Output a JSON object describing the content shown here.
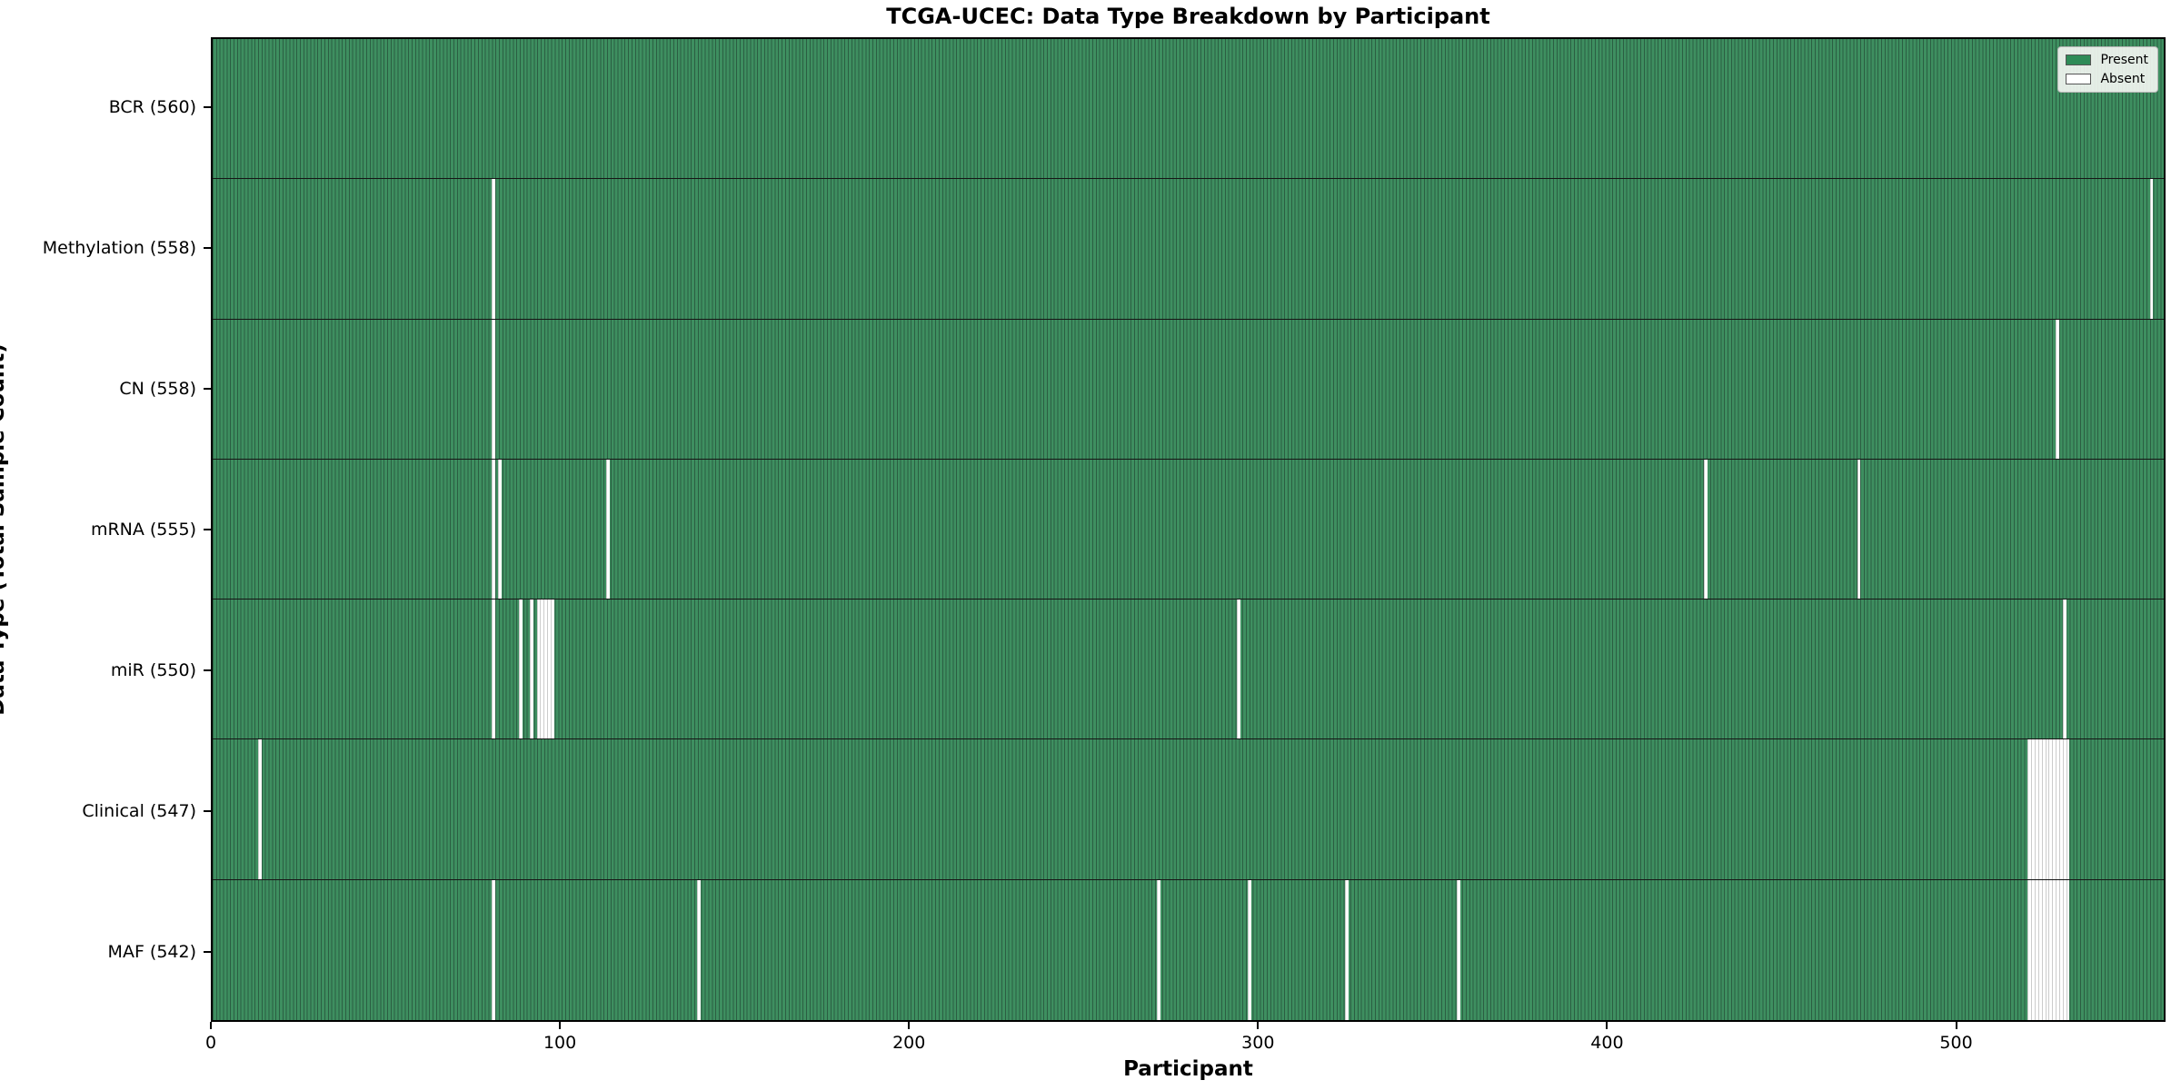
{
  "chart_data": {
    "type": "heatmap",
    "title": "TCGA-UCEC: Data Type Breakdown by Participant",
    "xlabel": "Participant",
    "ylabel": "Data Type (Total Sample Count)",
    "n_participants": 560,
    "x_ticks": [
      0,
      100,
      200,
      300,
      400,
      500
    ],
    "legend_position": "upper right",
    "grid": false,
    "colors": {
      "present": "#2e8b57",
      "present_fill": "#3e8f60",
      "cell_edge": "#2b5e42",
      "absent": "#ffffff",
      "row_separator": "#161616"
    },
    "legend": [
      {
        "label": "Present",
        "color": "#2e8b57"
      },
      {
        "label": "Absent",
        "color": "#ffffff"
      }
    ],
    "rows": [
      {
        "label": "BCR (560)",
        "data_type": "BCR",
        "total": 560,
        "absent_participants": []
      },
      {
        "label": "Methylation (558)",
        "data_type": "Methylation",
        "total": 558,
        "absent_participants": [
          80,
          556
        ]
      },
      {
        "label": "CN (558)",
        "data_type": "CN",
        "total": 558,
        "absent_participants": [
          80,
          529
        ]
      },
      {
        "label": "mRNA (555)",
        "data_type": "mRNA",
        "total": 555,
        "absent_participants": [
          80,
          82,
          113,
          428,
          472
        ]
      },
      {
        "label": "miR (550)",
        "data_type": "miR",
        "total": 550,
        "absent_participants": [
          80,
          88,
          91,
          93,
          94,
          95,
          96,
          97,
          294,
          531
        ]
      },
      {
        "label": "Clinical (547)",
        "data_type": "Clinical",
        "total": 547,
        "absent_participants": [
          13,
          521,
          522,
          523,
          524,
          525,
          526,
          527,
          528,
          529,
          530,
          531,
          532
        ]
      },
      {
        "label": "MAF (542)",
        "data_type": "MAF",
        "total": 542,
        "absent_participants": [
          80,
          139,
          271,
          297,
          325,
          357,
          521,
          522,
          523,
          524,
          525,
          526,
          527,
          528,
          529,
          530,
          531,
          532
        ]
      }
    ]
  }
}
